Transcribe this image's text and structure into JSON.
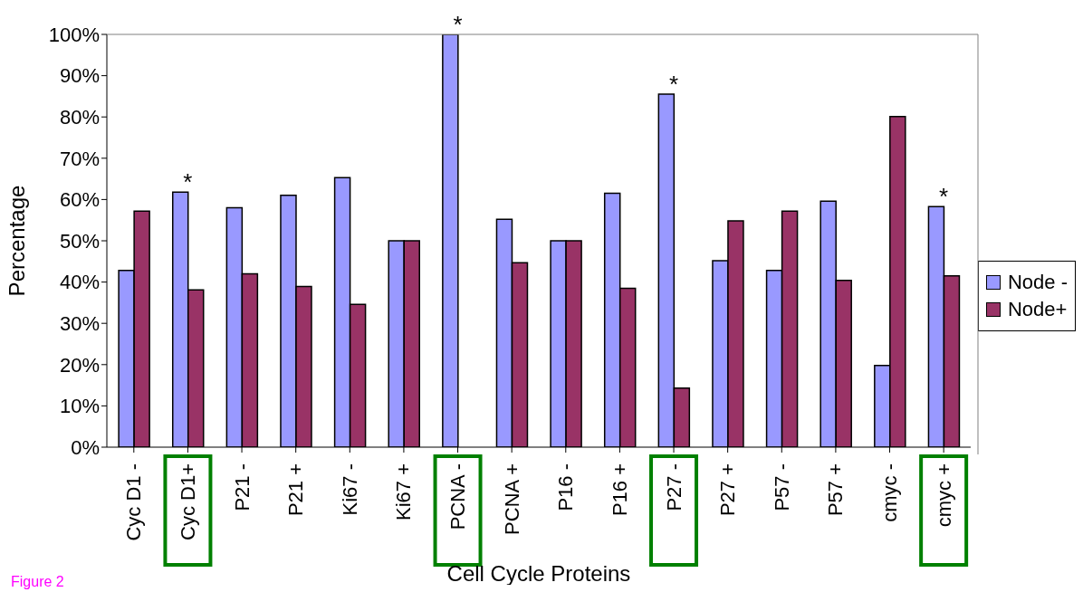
{
  "chart_data": {
    "type": "bar",
    "xlabel": "Cell Cycle Proteins",
    "ylabel": "Percentage",
    "categories": [
      "Cyc D1 -",
      "Cyc D1+",
      "P21 -",
      "P21 +",
      "Ki67 -",
      "Ki67 +",
      "PCNA -",
      "PCNA +",
      "P16 -",
      "P16 +",
      "P27 -",
      "P27 +",
      "P57 -",
      "P57 +",
      "cmyc -",
      "cmyc +"
    ],
    "series": [
      {
        "name": "Node -",
        "color": "#9999ff",
        "values": [
          42.8,
          61.8,
          58.0,
          61.0,
          65.3,
          50,
          100,
          55.2,
          50,
          61.5,
          85.5,
          45.2,
          42.8,
          59.6,
          19.8,
          58.3
        ]
      },
      {
        "name": "Node+",
        "color": "#993366",
        "values": [
          57.2,
          38.1,
          42.0,
          38.9,
          34.6,
          50,
          0,
          44.7,
          50,
          38.5,
          14.3,
          54.8,
          57.2,
          40.4,
          80.1,
          41.5
        ]
      }
    ],
    "ylim": [
      0,
      100
    ],
    "yticks": [
      {
        "value": 0,
        "label": "0%"
      },
      {
        "value": 10,
        "label": "10%"
      },
      {
        "value": 20,
        "label": "20%"
      },
      {
        "value": 30,
        "label": "30%"
      },
      {
        "value": 40,
        "label": "40%"
      },
      {
        "value": 50,
        "label": "50%"
      },
      {
        "value": 60,
        "label": "60%"
      },
      {
        "value": 70,
        "label": "70%"
      },
      {
        "value": 80,
        "label": "80%"
      },
      {
        "value": 90,
        "label": "90%"
      },
      {
        "value": 100,
        "label": "100%"
      }
    ],
    "grid": false,
    "legend": "right",
    "annotations": [
      {
        "text": "*",
        "x": "Cyc D1+",
        "y": 61.8
      },
      {
        "text": "*",
        "x": "PCNA -",
        "y": 100
      },
      {
        "text": "*",
        "x": "P27 -",
        "y": 85.5
      },
      {
        "text": "*",
        "x": "cmyc +",
        "y": 58.3
      },
      "Figure 2"
    ]
  }
}
